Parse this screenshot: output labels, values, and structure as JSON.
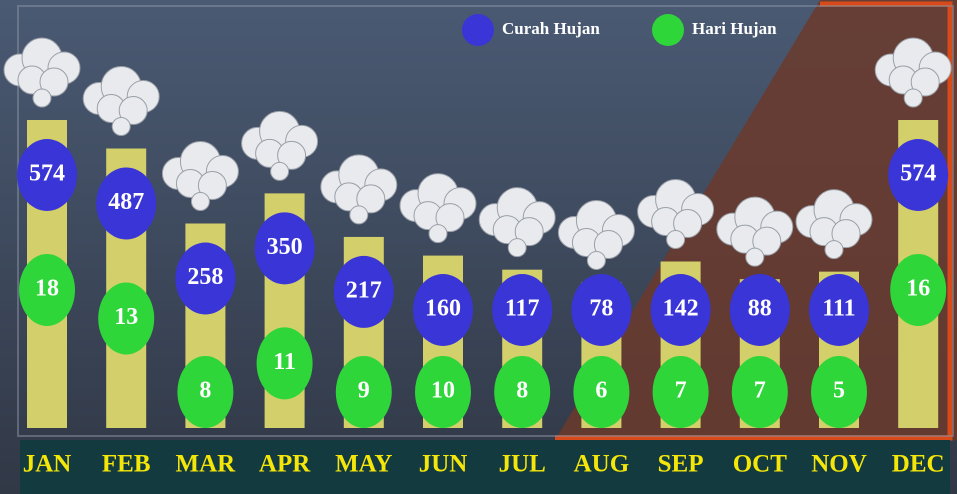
{
  "chart_data": {
    "type": "bar",
    "categories": [
      "JAN",
      "FEB",
      "MAR",
      "APR",
      "MAY",
      "JUN",
      "JUL",
      "AUG",
      "SEP",
      "OCT",
      "NOV",
      "DEC"
    ],
    "series": [
      {
        "name": "Curah Hujan",
        "color": "#3a35d6",
        "values": [
          574,
          487,
          258,
          350,
          217,
          160,
          117,
          78,
          142,
          88,
          111,
          574
        ]
      },
      {
        "name": "Hari Hujan",
        "color": "#2ed63a",
        "values": [
          18,
          13,
          8,
          11,
          9,
          10,
          8,
          6,
          7,
          7,
          5,
          16
        ]
      }
    ],
    "bar_color": "#d3cf6a"
  }
}
